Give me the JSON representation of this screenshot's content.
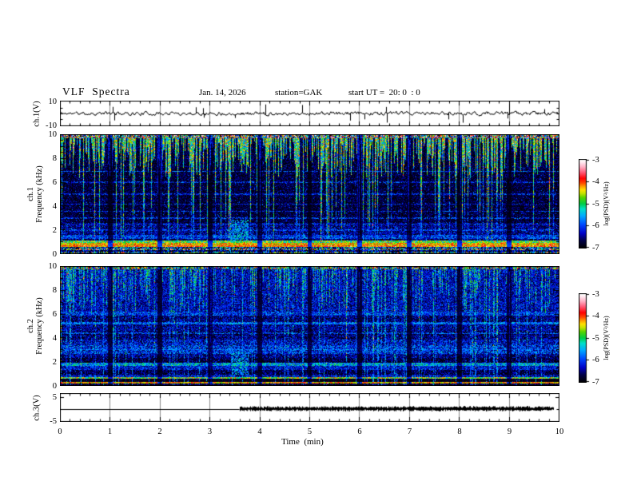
{
  "header": {
    "title": "VLF  Spectra",
    "date": "Jan. 14, 2026",
    "station": "station=GAK",
    "start_ut": "start UT =  20: 0  : 0"
  },
  "panels": {
    "ch1_wave": {
      "ylabel": "ch.1(V)",
      "yticks": [
        "10",
        "-10"
      ]
    },
    "spec1": {
      "ylabel_lines": [
        "ch.1",
        "Frequency  (kHz)"
      ],
      "yticks": [
        "0",
        "2",
        "4",
        "6",
        "8",
        "10"
      ]
    },
    "spec2": {
      "ylabel_lines": [
        "ch.2",
        "Frequency  (kHz)"
      ],
      "yticks": [
        "0",
        "2",
        "4",
        "6",
        "8",
        "10"
      ]
    },
    "ch3": {
      "ylabel": "ch.3(V)",
      "yticks": [
        "5",
        "-5"
      ]
    }
  },
  "xaxis": {
    "label": "Time  (min)",
    "ticks": [
      "0",
      "1",
      "2",
      "3",
      "4",
      "5",
      "6",
      "7",
      "8",
      "9",
      "10"
    ]
  },
  "colorbar": {
    "label": "log(PSD)(V²/Hz)",
    "ticks": [
      "-3",
      "-4",
      "-5",
      "-6",
      "-7"
    ]
  },
  "colormap": {
    "range": [
      -7,
      -3
    ],
    "stops": [
      [
        0.0,
        "#000006"
      ],
      [
        0.08,
        "#00004a"
      ],
      [
        0.16,
        "#0000c8"
      ],
      [
        0.26,
        "#0048ff"
      ],
      [
        0.36,
        "#00aaff"
      ],
      [
        0.44,
        "#00e0c8"
      ],
      [
        0.5,
        "#00cc44"
      ],
      [
        0.57,
        "#55d400"
      ],
      [
        0.62,
        "#c8e400"
      ],
      [
        0.66,
        "#ffe000"
      ],
      [
        0.7,
        "#ff9900"
      ],
      [
        0.74,
        "#ff4400"
      ],
      [
        0.79,
        "#ff0000"
      ],
      [
        0.86,
        "#ff5a78"
      ],
      [
        0.92,
        "#ffafc3"
      ],
      [
        0.97,
        "#ffe4ec"
      ],
      [
        1.0,
        "#ffffff"
      ]
    ]
  },
  "chart_data": [
    {
      "id": "ch1_waveform",
      "type": "line",
      "ylabel": "ch.1(V)",
      "xlim": [
        0,
        10
      ],
      "ylim": [
        -10,
        10
      ],
      "yticks": [
        10,
        -10
      ],
      "grid": "vertical gray line each minute",
      "description": "Raw VLF channel-1 voltage: continuous broadband noise of about ±2 V around 0 V with sparse impulsive spikes reaching ±9 V across the whole 10-minute record.",
      "model": {
        "seed": 11,
        "ar": 0.5,
        "noise_v": 1.35,
        "spike_prob": 0.02,
        "spike_min": 3.5,
        "spike_max": 9
      }
    },
    {
      "id": "ch1_spectrogram",
      "type": "heatmap",
      "ylabel": "ch.1 Frequency (kHz)",
      "xlim": [
        0,
        10
      ],
      "ylim": [
        0,
        10
      ],
      "zlabel": "log(PSD)(V²/Hz)",
      "zlim": [
        -7,
        -3
      ],
      "yticks": [
        0,
        2,
        4,
        6,
        8,
        10
      ],
      "description": "Dense vertical impulsive streaks (green/yellow, PSD ~1e-5) descend from 10 kHz to ~6.5 kHz over a very dark (~1e-7) 2-6.5 kHz background; thin cyan spikes reach the bottom; strong yellow/orange hum bands below 1 kHz.",
      "model": {
        "seed": 7,
        "bands": [
          {
            "f0": 9.7,
            "f1": 10.01,
            "v": -5.0,
            "sigma": 1.15
          },
          {
            "f0": 2.6,
            "f1": 9.7,
            "v": -6.8,
            "sigma": 0.22
          },
          {
            "f0": 1.6,
            "f1": 2.6,
            "v": -6.55,
            "sigma": 0.3
          },
          {
            "f0": 1.3,
            "f1": 1.6,
            "v": -6.1,
            "sigma": 0.35
          },
          {
            "f0": 1.15,
            "f1": 1.3,
            "v": -6.7,
            "sigma": 0.3
          },
          {
            "f0": 0.95,
            "f1": 1.15,
            "v": -4.9,
            "sigma": 0.4
          },
          {
            "f0": 0.75,
            "f1": 0.95,
            "v": -4.35,
            "sigma": 0.3
          },
          {
            "f0": 0.62,
            "f1": 0.75,
            "v": -4.15,
            "sigma": 0.3
          },
          {
            "f0": 0.5,
            "f1": 0.62,
            "v": -6.2,
            "sigma": 0.85
          },
          {
            "f0": 0.35,
            "f1": 0.5,
            "v": -5.3,
            "sigma": 1.25
          },
          {
            "f0": 0.2,
            "f1": 0.35,
            "v": -6.6,
            "sigma": 0.4
          },
          {
            "f0": 0.05,
            "f1": 0.2,
            "v": -5.7,
            "sigma": 1.0
          },
          {
            "f0": 0.0,
            "f1": 0.05,
            "v": -6.8,
            "sigma": 0.2
          }
        ],
        "streaks": {
          "prob_on": 0.62,
          "depth_min": 6.3,
          "depth_max": 9.4,
          "deep_prob": 0.22,
          "deep_min": 0.8,
          "deep_max": 5.5,
          "on_v": -5.0,
          "deep_v": -6.05,
          "hot_prob": 0.15,
          "top_f": 9.7
        },
        "hlines": [
          {
            "f": 2.0,
            "v": -6.0
          },
          {
            "f": 2.5,
            "v": -6.05
          },
          {
            "f": 3.0,
            "v": -6.0
          },
          {
            "f": 3.55,
            "v": -6.1
          },
          {
            "f": 4.15,
            "v": -6.15
          },
          {
            "f": 5.0,
            "v": -6.1
          },
          {
            "f": 6.0,
            "v": -6.05
          },
          {
            "f": 6.9,
            "v": -5.9
          }
        ],
        "blobs": [
          {
            "t0": 3.42,
            "t1": 3.78,
            "f0": 0.9,
            "f1": 2.9,
            "v": -5.5,
            "prob": 0.55
          }
        ],
        "speckle": {
          "prob": 0.05,
          "boost": 0.65
        },
        "minute_cols": true
      }
    },
    {
      "id": "ch2_spectrogram",
      "type": "heatmap",
      "ylabel": "ch.2 Frequency (kHz)",
      "xlim": [
        0,
        10
      ],
      "ylim": [
        0,
        10
      ],
      "zlabel": "log(PSD)(V²/Hz)",
      "zlim": [
        -7,
        -3
      ],
      "yticks": [
        0,
        2,
        4,
        6,
        8,
        10
      ],
      "description": "Bluer channel: cyan/green impulsive streaks above ~6 kHz over a blue (~1e-6.4) background, layered horizontal blue bands below 6 kHz, bright green line near 1.8 kHz, and narrow green (0.65 kHz) and red (0.3 kHz) hum lines at the bottom.",
      "model": {
        "seed": 13,
        "bands": [
          {
            "f0": 9.75,
            "f1": 10.01,
            "v": -5.3,
            "sigma": 0.9
          },
          {
            "f0": 6.2,
            "f1": 9.75,
            "v": -6.4,
            "sigma": 0.3
          },
          {
            "f0": 5.9,
            "f1": 6.2,
            "v": -6.1,
            "sigma": 0.35
          },
          {
            "f0": 5.35,
            "f1": 5.9,
            "v": -6.6,
            "sigma": 0.3
          },
          {
            "f0": 5.15,
            "f1": 5.35,
            "v": -6.0,
            "sigma": 0.4
          },
          {
            "f0": 4.55,
            "f1": 5.15,
            "v": -6.5,
            "sigma": 0.3
          },
          {
            "f0": 4.25,
            "f1": 4.55,
            "v": -6.85,
            "sigma": 0.4
          },
          {
            "f0": 3.9,
            "f1": 4.25,
            "v": -6.6,
            "sigma": 0.3
          },
          {
            "f0": 3.4,
            "f1": 3.9,
            "v": -6.35,
            "sigma": 0.35
          },
          {
            "f0": 2.7,
            "f1": 3.4,
            "v": -6.15,
            "sigma": 0.4
          },
          {
            "f0": 2.35,
            "f1": 2.7,
            "v": -6.55,
            "sigma": 0.3
          },
          {
            "f0": 1.95,
            "f1": 2.35,
            "v": -6.8,
            "sigma": 0.3
          },
          {
            "f0": 1.7,
            "f1": 1.95,
            "v": -5.6,
            "sigma": 0.45
          },
          {
            "f0": 1.35,
            "f1": 1.7,
            "v": -6.3,
            "sigma": 0.3
          },
          {
            "f0": 0.95,
            "f1": 1.35,
            "v": -6.75,
            "sigma": 0.3
          },
          {
            "f0": 0.72,
            "f1": 0.95,
            "v": -6.35,
            "sigma": 0.35
          },
          {
            "f0": 0.6,
            "f1": 0.72,
            "v": -4.8,
            "sigma": 0.5
          },
          {
            "f0": 0.35,
            "f1": 0.6,
            "v": -6.95,
            "sigma": 0.15
          },
          {
            "f0": 0.22,
            "f1": 0.35,
            "v": -4.3,
            "sigma": 0.35
          },
          {
            "f0": 0.0,
            "f1": 0.22,
            "v": -6.8,
            "sigma": 0.25
          }
        ],
        "streaks": {
          "prob_on": 0.4,
          "depth_min": 6.0,
          "depth_max": 9.5,
          "deep_prob": 0.3,
          "deep_min": 0.8,
          "deep_max": 5.5,
          "on_v": -5.55,
          "deep_v": -5.95,
          "hot_prob": 0.06,
          "top_f": 9.75
        },
        "hlines": [
          {
            "f": 4.4,
            "v": -5.9
          },
          {
            "f": 5.2,
            "v": -5.85
          },
          {
            "f": 3.05,
            "v": -5.9
          }
        ],
        "blobs": [
          {
            "t0": 3.42,
            "t1": 3.78,
            "f0": 0.9,
            "f1": 2.9,
            "v": -5.6,
            "prob": 0.5
          }
        ],
        "speckle": {
          "prob": 0.05,
          "boost": 0.5
        },
        "minute_cols": true
      }
    },
    {
      "id": "ch3_level",
      "type": "line",
      "ylabel": "ch.3(V)",
      "xlim": [
        0,
        10
      ],
      "ylim": [
        -5,
        5
      ],
      "yticks": [
        5,
        -5
      ],
      "grid": "vertical gray line each minute",
      "description": "Channel-3 housekeeping level: flat thin line at 0 V from 0 to ~3.6 min, then a thick noisy band (~±0.4 V) from ~3.6 min to ~9.9 min.",
      "segments": [
        {
          "t0": 0.0,
          "t1": 3.6,
          "value": 0,
          "style": "thin"
        },
        {
          "t0": 3.6,
          "t1": 9.9,
          "value": 0.15,
          "style": "thick-noisy",
          "amp": 0.45
        }
      ],
      "model": {
        "seed": 5
      }
    }
  ]
}
